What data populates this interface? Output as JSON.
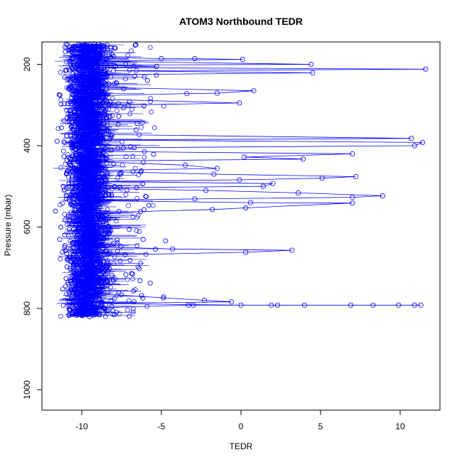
{
  "chart_data": {
    "type": "line",
    "title": "ATOM3 Northbound TEDR",
    "xlabel": "TEDR",
    "ylabel": "Pressure (mbar)",
    "xlim": [
      -12.5,
      12.5
    ],
    "ylim": [
      1050,
      145
    ],
    "y_reversed": true,
    "x_ticks": [
      -10,
      -5,
      0,
      5,
      10
    ],
    "y_ticks": [
      200,
      400,
      600,
      800,
      1000
    ],
    "grid": false,
    "legend": "none",
    "marker": "open-circle",
    "color": "#0000ff",
    "series": [
      {
        "points": [
          [
            -10.2,
            150
          ],
          [
            -9.1,
            158
          ],
          [
            -10.8,
            166
          ],
          [
            -8.7,
            174
          ],
          [
            -9.6,
            182
          ],
          [
            -5.0,
            186
          ],
          [
            -2.9,
            186
          ],
          [
            0.1,
            188
          ],
          [
            -9.8,
            192
          ],
          [
            4.4,
            200
          ],
          [
            -10.5,
            202
          ],
          [
            -5.3,
            205
          ],
          [
            -9.2,
            208
          ],
          [
            11.6,
            212
          ],
          [
            -8.0,
            216
          ],
          [
            4.5,
            221
          ],
          [
            -10.1,
            226
          ],
          [
            -9.0,
            232
          ],
          [
            -10.7,
            240
          ],
          [
            -8.5,
            248
          ],
          [
            -9.4,
            256
          ],
          [
            0.8,
            265
          ],
          [
            -1.5,
            271
          ],
          [
            -3.4,
            272
          ],
          [
            -9.9,
            278
          ],
          [
            -8.8,
            286
          ],
          [
            -0.1,
            295
          ],
          [
            -10.3,
            302
          ],
          [
            -9.5,
            312
          ],
          [
            -8.6,
            322
          ],
          [
            -10.9,
            332
          ],
          [
            -9.1,
            342
          ],
          [
            -10.0,
            352
          ],
          [
            -8.4,
            362
          ],
          [
            -9.7,
            372
          ],
          [
            10.7,
            382
          ],
          [
            -9.2,
            386
          ],
          [
            11.4,
            392
          ],
          [
            10.9,
            400
          ],
          [
            -10.6,
            406
          ],
          [
            -8.9,
            414
          ],
          [
            7.0,
            420
          ],
          [
            0.2,
            428
          ],
          [
            3.9,
            433
          ],
          [
            -9.8,
            438
          ],
          [
            -3.5,
            448
          ],
          [
            -1.5,
            456
          ],
          [
            -10.2,
            462
          ],
          [
            -1.7,
            470
          ],
          [
            7.2,
            476
          ],
          [
            5.1,
            480
          ],
          [
            -0.1,
            484
          ],
          [
            -9.0,
            488
          ],
          [
            2.0,
            493
          ],
          [
            1.4,
            500
          ],
          [
            -10.4,
            504
          ],
          [
            -2.2,
            510
          ],
          [
            3.6,
            516
          ],
          [
            8.9,
            523
          ],
          [
            7.0,
            527
          ],
          [
            -2.9,
            531
          ],
          [
            -9.6,
            535
          ],
          [
            0.6,
            540
          ],
          [
            7.0,
            541
          ],
          [
            0.3,
            553
          ],
          [
            -1.8,
            557
          ],
          [
            -10.1,
            566
          ],
          [
            -9.3,
            578
          ],
          [
            -10.6,
            590
          ],
          [
            -8.7,
            602
          ],
          [
            -9.8,
            614
          ],
          [
            -9.0,
            626
          ],
          [
            -10.3,
            638
          ],
          [
            -9.4,
            648
          ],
          [
            -4.3,
            654
          ],
          [
            3.2,
            657
          ],
          [
            0.3,
            662
          ],
          [
            -9.9,
            670
          ],
          [
            -8.9,
            682
          ],
          [
            -10.5,
            694
          ],
          [
            -9.2,
            706
          ],
          [
            -10.0,
            718
          ],
          [
            -8.6,
            730
          ],
          [
            -9.7,
            742
          ],
          [
            -10.4,
            754
          ],
          [
            -9.1,
            764
          ],
          [
            -2.3,
            780
          ],
          [
            -0.6,
            784
          ],
          [
            -9.6,
            788
          ],
          [
            0.0,
            792
          ],
          [
            11.3,
            792
          ],
          [
            10.9,
            792
          ],
          [
            9.9,
            792
          ],
          [
            8.3,
            792
          ],
          [
            6.9,
            792
          ],
          [
            4.0,
            792
          ],
          [
            2.3,
            792
          ],
          [
            1.9,
            792
          ],
          [
            -3.0,
            792
          ],
          [
            -3.3,
            792
          ],
          [
            -10.2,
            800
          ],
          [
            -9.0,
            808
          ],
          [
            -10.8,
            816
          ],
          [
            -9.5,
            820
          ]
        ]
      }
    ]
  }
}
